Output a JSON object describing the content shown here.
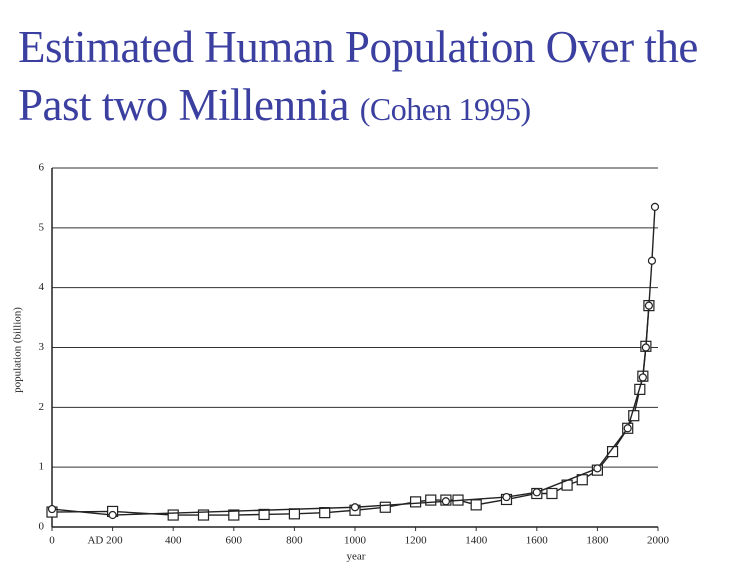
{
  "chart_data": {
    "type": "line",
    "title": "Estimated Human Population Over the Past two Millennia",
    "subtitle": "(Cohen 1995)",
    "xlabel": "year",
    "ylabel": "population (billion)",
    "xlim": [
      0,
      2000
    ],
    "xticks": [
      0,
      {
        "value": 200,
        "label": "AD 200"
      },
      400,
      600,
      800,
      1000,
      1200,
      1400,
      1600,
      1800,
      2000
    ],
    "ylim": [
      0,
      6
    ],
    "yticks": [
      0,
      1,
      2,
      3,
      4,
      5,
      6
    ],
    "grid": true,
    "series": [
      {
        "color": "#222222",
        "marker": "square",
        "x": [
          0,
          200,
          400,
          500,
          600,
          700,
          800,
          900,
          1000,
          1100,
          1200,
          1250,
          1300,
          1340,
          1400,
          1500,
          1600,
          1650,
          1700,
          1750,
          1800,
          1850,
          1900,
          1920,
          1940,
          1950,
          1960,
          1970
        ],
        "values": [
          0.25,
          0.26,
          0.2,
          0.2,
          0.2,
          0.21,
          0.22,
          0.24,
          0.28,
          0.33,
          0.42,
          0.45,
          0.45,
          0.45,
          0.37,
          0.46,
          0.56,
          0.56,
          0.7,
          0.79,
          0.95,
          1.26,
          1.65,
          1.86,
          2.3,
          2.52,
          3.02,
          3.7
        ]
      },
      {
        "color": "#222222",
        "marker": "circle",
        "x": [
          0,
          200,
          1000,
          1300,
          1500,
          1600,
          1800,
          1900,
          1950,
          1960,
          1970,
          1980,
          1990
        ],
        "values": [
          0.3,
          0.2,
          0.33,
          0.43,
          0.5,
          0.58,
          0.98,
          1.65,
          2.5,
          3.0,
          3.7,
          4.45,
          5.35
        ]
      }
    ]
  }
}
